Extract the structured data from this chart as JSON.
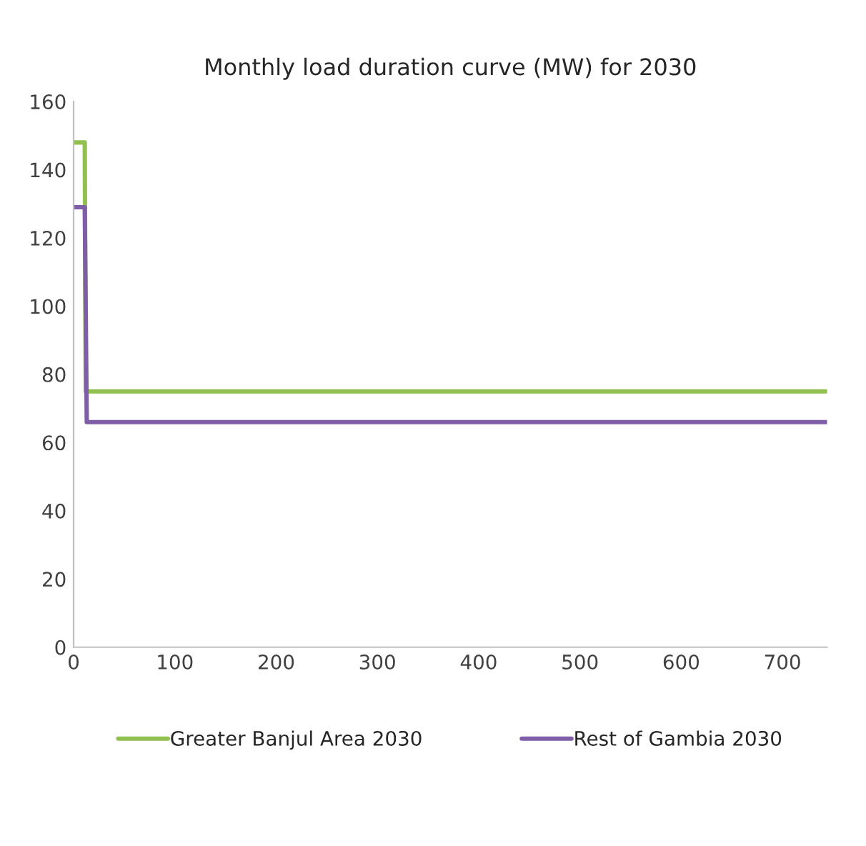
{
  "chart_data": {
    "type": "line",
    "title": "Monthly load duration curve (MW) for 2030",
    "series": [
      {
        "name": "Greater Banjul Area 2030",
        "color": "#92c050",
        "x": [
          0,
          11,
          12,
          744
        ],
        "values": [
          148,
          148,
          75,
          75
        ]
      },
      {
        "name": "Rest of Gambia 2030",
        "color": "#7f5ea8",
        "x": [
          0,
          11,
          13,
          744
        ],
        "values": [
          129,
          129,
          66,
          66
        ]
      }
    ],
    "xlim": [
      0,
      744
    ],
    "xticks": [
      0,
      100,
      200,
      300,
      400,
      500,
      600,
      700
    ],
    "ylim": [
      0,
      160
    ],
    "yticks": [
      0,
      20,
      40,
      60,
      80,
      100,
      120,
      140,
      160
    ],
    "grid": false,
    "legend": "bottom",
    "marker": "none",
    "line_style": "solid"
  }
}
